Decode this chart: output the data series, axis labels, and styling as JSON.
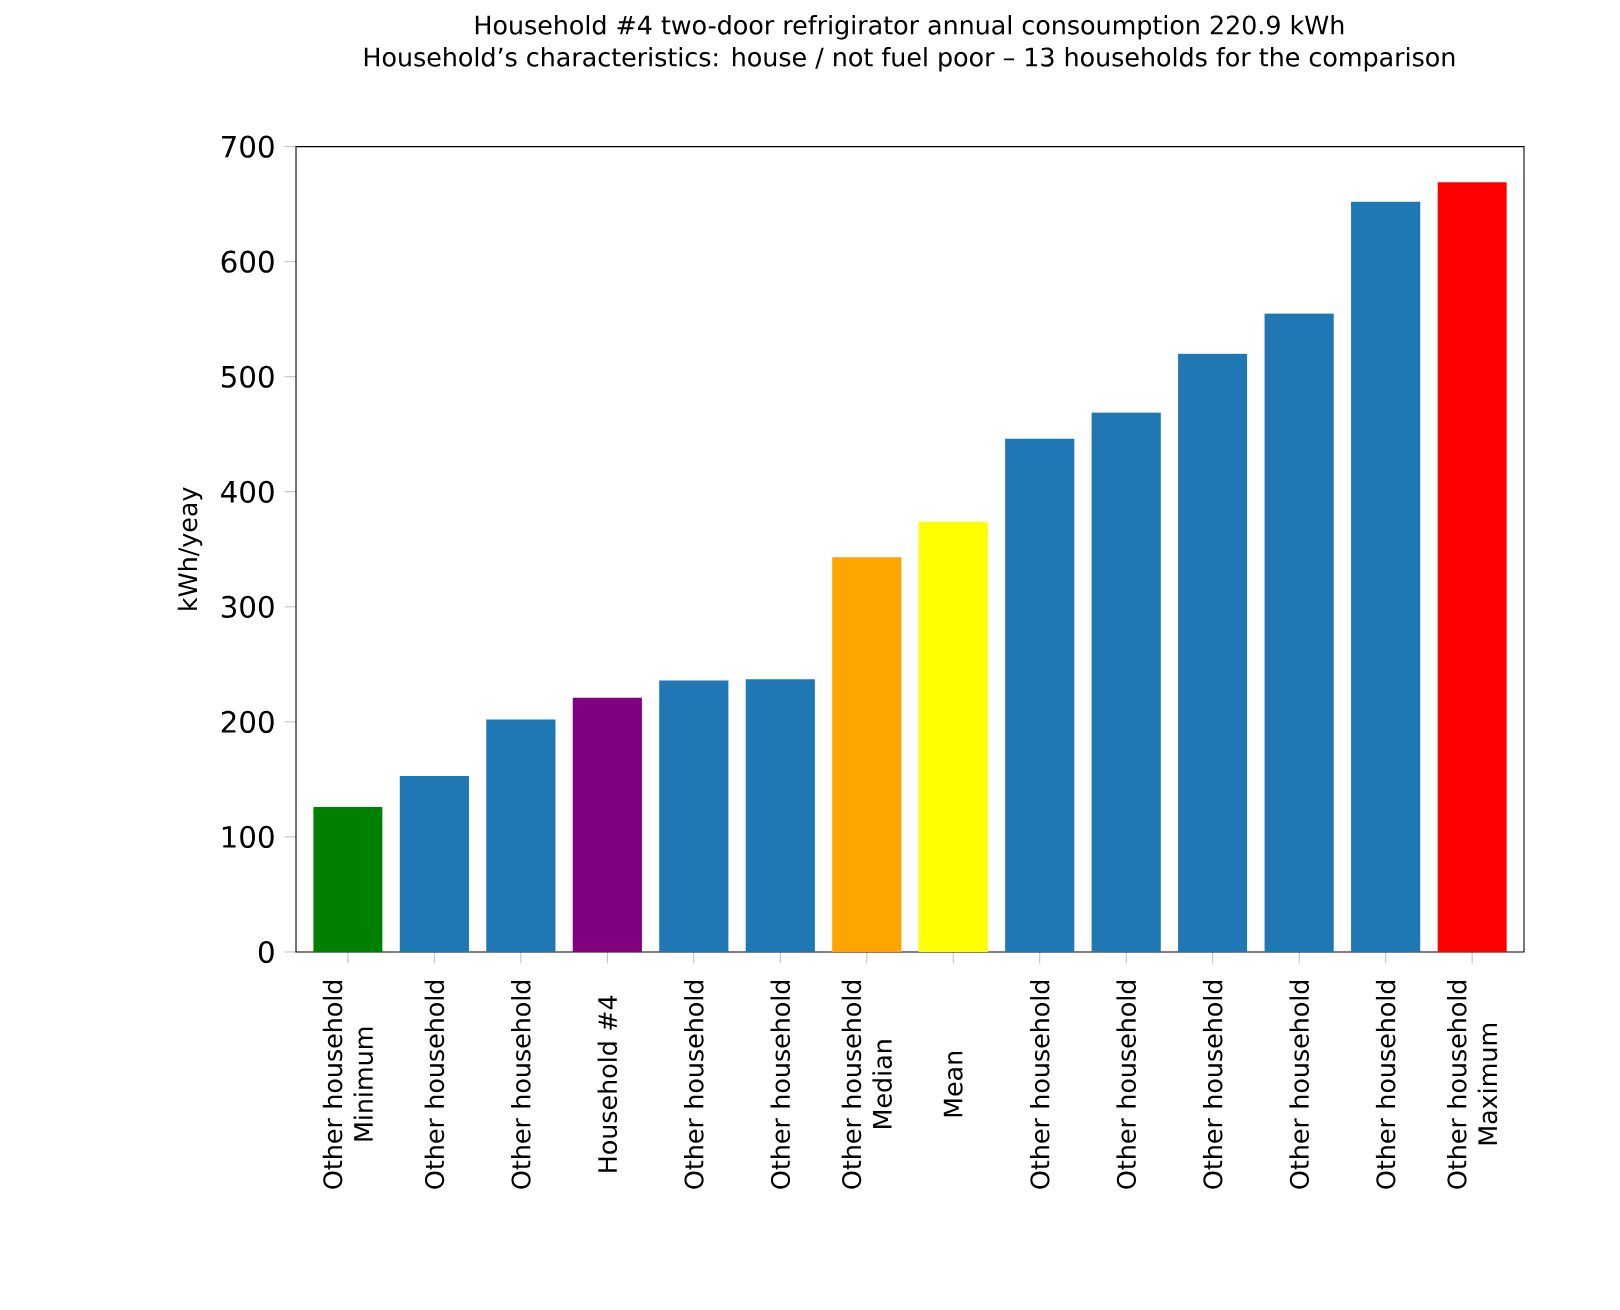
{
  "chart_data": {
    "type": "bar",
    "title": "Household #4 two-door refrigirator annual consoumption 220.9 kWh",
    "subtitle": "Household’s characteristics: house / not fuel poor – 13 households for the comparison",
    "ylabel": "kWh/yeay",
    "categories": [
      "Other household Minimum",
      "Other household",
      "Other household",
      "Household #4",
      "Other household",
      "Other household",
      "Other household Median",
      "Mean",
      "Other household",
      "Other household",
      "Other household",
      "Other household",
      "Other household",
      "Other household Maximum"
    ],
    "values": [
      126,
      153,
      202,
      220.9,
      236,
      237,
      343,
      374,
      446,
      469,
      520,
      555,
      652,
      669
    ],
    "colors": [
      "#008000",
      "#1f77b4",
      "#1f77b4",
      "#800080",
      "#1f77b4",
      "#1f77b4",
      "#ffa500",
      "#ffff00",
      "#1f77b4",
      "#1f77b4",
      "#1f77b4",
      "#1f77b4",
      "#1f77b4",
      "#ff0000"
    ],
    "ylim": [
      0,
      700
    ],
    "yticks": [
      0,
      100,
      200,
      300,
      400,
      500,
      600,
      700
    ],
    "grid": false
  }
}
